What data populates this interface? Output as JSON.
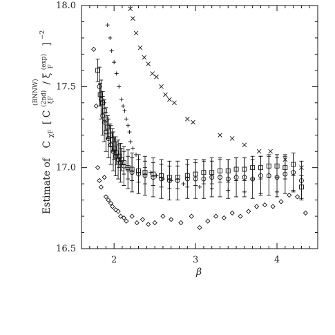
{
  "chart_data": {
    "type": "scatter",
    "title": "",
    "xlabel": "β",
    "ylabel": {
      "prefix": "Estimate of",
      "c_chi": "C",
      "sub_chi": "χF",
      "frac_num_C": "C",
      "frac_num_sup": "(2nd)",
      "frac_num_sub": "ξF",
      "slash": "/",
      "frac_den_C": "ξ",
      "frac_den_sup": "(exp)",
      "frac_den_sub": "F",
      "bnw_sup": "(BNNW)",
      "power": "−2"
    },
    "xlim": [
      1.6,
      4.5
    ],
    "ylim": [
      16.5,
      18.0
    ],
    "xticks": [
      2,
      3,
      4
    ],
    "xtick_labels": [
      "2",
      "3",
      "4"
    ],
    "yticks": [
      16.5,
      17.0,
      17.5,
      18.0
    ],
    "ytick_labels": [
      "16.5",
      "17.0",
      "17.5",
      "18.0"
    ],
    "grid": false,
    "series": [
      {
        "marker": "x",
        "points": [
          [
            2.2,
            17.98
          ],
          [
            2.23,
            17.92
          ],
          [
            2.27,
            17.83
          ],
          [
            2.32,
            17.74
          ],
          [
            2.37,
            17.68
          ],
          [
            2.42,
            17.64
          ],
          [
            2.47,
            17.58
          ],
          [
            2.52,
            17.56
          ],
          [
            2.58,
            17.5
          ],
          [
            2.63,
            17.45
          ],
          [
            2.68,
            17.42
          ],
          [
            2.74,
            17.4
          ],
          [
            2.9,
            17.3
          ],
          [
            2.97,
            17.28
          ],
          [
            3.3,
            17.2
          ],
          [
            3.45,
            17.18
          ],
          [
            3.6,
            17.14
          ],
          [
            3.78,
            17.1
          ],
          [
            3.92,
            17.1
          ],
          [
            4.1,
            17.05
          ],
          [
            4.3,
            17.0
          ]
        ]
      },
      {
        "marker": "cross",
        "points": [
          [
            1.92,
            17.88
          ],
          [
            1.95,
            17.8
          ],
          [
            1.97,
            17.72
          ],
          [
            2.0,
            17.65
          ],
          [
            2.03,
            17.58
          ],
          [
            2.06,
            17.5
          ],
          [
            2.09,
            17.42
          ],
          [
            2.11,
            17.38
          ],
          [
            2.13,
            17.35
          ],
          [
            2.15,
            17.3
          ],
          [
            2.17,
            17.26
          ],
          [
            2.19,
            17.22
          ],
          [
            2.2,
            17.16
          ],
          [
            2.23,
            17.12
          ],
          [
            2.27,
            17.08
          ],
          [
            2.3,
            17.05
          ],
          [
            2.38,
            17.0
          ],
          [
            2.45,
            16.97
          ],
          [
            2.52,
            16.95
          ],
          [
            2.6,
            16.93
          ],
          [
            2.7,
            16.92
          ],
          [
            2.85,
            16.9
          ],
          [
            3.05,
            16.88
          ],
          [
            3.2,
            16.87
          ],
          [
            3.4,
            16.86
          ],
          [
            3.6,
            16.85
          ],
          [
            3.8,
            16.84
          ],
          [
            4.0,
            16.85
          ],
          [
            4.2,
            16.86
          ]
        ]
      },
      {
        "marker": "diamond",
        "points": [
          [
            1.75,
            17.73
          ],
          [
            1.78,
            17.38
          ],
          [
            1.8,
            17.0
          ],
          [
            1.82,
            16.92
          ],
          [
            1.84,
            16.88
          ],
          [
            1.88,
            16.94
          ],
          [
            1.9,
            16.82
          ],
          [
            1.93,
            16.8
          ],
          [
            1.96,
            16.78
          ],
          [
            1.98,
            16.76
          ],
          [
            2.02,
            16.74
          ],
          [
            2.05,
            16.73
          ],
          [
            2.08,
            16.7
          ],
          [
            2.12,
            16.69
          ],
          [
            2.15,
            16.67
          ],
          [
            2.22,
            16.7
          ],
          [
            2.28,
            16.66
          ],
          [
            2.35,
            16.68
          ],
          [
            2.42,
            16.65
          ],
          [
            2.5,
            16.66
          ],
          [
            2.6,
            16.7
          ],
          [
            2.7,
            16.68
          ],
          [
            2.82,
            16.66
          ],
          [
            2.95,
            16.7
          ],
          [
            3.05,
            16.63
          ],
          [
            3.15,
            16.67
          ],
          [
            3.25,
            16.7
          ],
          [
            3.35,
            16.69
          ],
          [
            3.45,
            16.72
          ],
          [
            3.55,
            16.7
          ],
          [
            3.65,
            16.73
          ],
          [
            3.75,
            16.76
          ],
          [
            3.85,
            16.77
          ],
          [
            3.95,
            16.76
          ],
          [
            4.05,
            16.79
          ],
          [
            4.15,
            16.83
          ],
          [
            4.25,
            16.82
          ],
          [
            4.35,
            16.72
          ]
        ]
      },
      {
        "marker": "square",
        "points": [
          [
            1.8,
            17.6
          ],
          [
            1.83,
            17.45
          ],
          [
            1.86,
            17.4
          ],
          [
            1.88,
            17.35
          ],
          [
            1.9,
            17.3
          ],
          [
            1.92,
            17.25
          ],
          [
            1.95,
            17.2
          ],
          [
            1.98,
            17.17
          ],
          [
            2.0,
            17.12
          ],
          [
            2.03,
            17.09
          ],
          [
            2.06,
            17.07
          ],
          [
            2.09,
            17.05
          ],
          [
            2.12,
            17.03
          ],
          [
            2.17,
            17.0
          ],
          [
            2.22,
            16.99
          ],
          [
            2.3,
            16.98
          ],
          [
            2.38,
            16.97
          ],
          [
            2.48,
            16.96
          ],
          [
            2.58,
            16.95
          ],
          [
            2.68,
            16.94
          ],
          [
            2.78,
            16.94
          ],
          [
            2.9,
            16.95
          ],
          [
            3.0,
            16.96
          ],
          [
            3.1,
            16.97
          ],
          [
            3.2,
            16.97
          ],
          [
            3.3,
            16.98
          ],
          [
            3.4,
            16.98
          ],
          [
            3.5,
            16.99
          ],
          [
            3.6,
            16.99
          ],
          [
            3.7,
            17.0
          ],
          [
            3.8,
            17.0
          ],
          [
            3.9,
            17.01
          ],
          [
            4.0,
            17.01
          ],
          [
            4.1,
            17.0
          ],
          [
            4.2,
            17.02
          ],
          [
            4.3,
            16.88
          ]
        ],
        "err": 0.07
      },
      {
        "marker": "circle",
        "points": [
          [
            1.82,
            17.5
          ],
          [
            1.84,
            17.42
          ],
          [
            1.86,
            17.32
          ],
          [
            1.88,
            17.28
          ],
          [
            1.9,
            17.22
          ],
          [
            1.93,
            17.18
          ],
          [
            1.96,
            17.14
          ],
          [
            1.99,
            17.1
          ],
          [
            2.02,
            17.07
          ],
          [
            2.05,
            17.05
          ],
          [
            2.08,
            17.03
          ],
          [
            2.12,
            17.01
          ],
          [
            2.17,
            16.99
          ],
          [
            2.22,
            16.97
          ],
          [
            2.3,
            16.96
          ],
          [
            2.38,
            16.95
          ],
          [
            2.48,
            16.94
          ],
          [
            2.58,
            16.93
          ],
          [
            2.68,
            16.92
          ],
          [
            2.78,
            16.92
          ],
          [
            2.9,
            16.93
          ],
          [
            3.0,
            16.93
          ],
          [
            3.1,
            16.93
          ],
          [
            3.2,
            16.94
          ],
          [
            3.3,
            16.94
          ],
          [
            3.4,
            16.93
          ],
          [
            3.5,
            16.94
          ],
          [
            3.6,
            16.94
          ],
          [
            3.7,
            16.93
          ],
          [
            3.8,
            16.95
          ],
          [
            3.9,
            16.95
          ],
          [
            4.0,
            16.94
          ],
          [
            4.1,
            16.96
          ],
          [
            4.2,
            16.97
          ],
          [
            4.3,
            16.92
          ]
        ],
        "err": 0.12
      }
    ]
  }
}
